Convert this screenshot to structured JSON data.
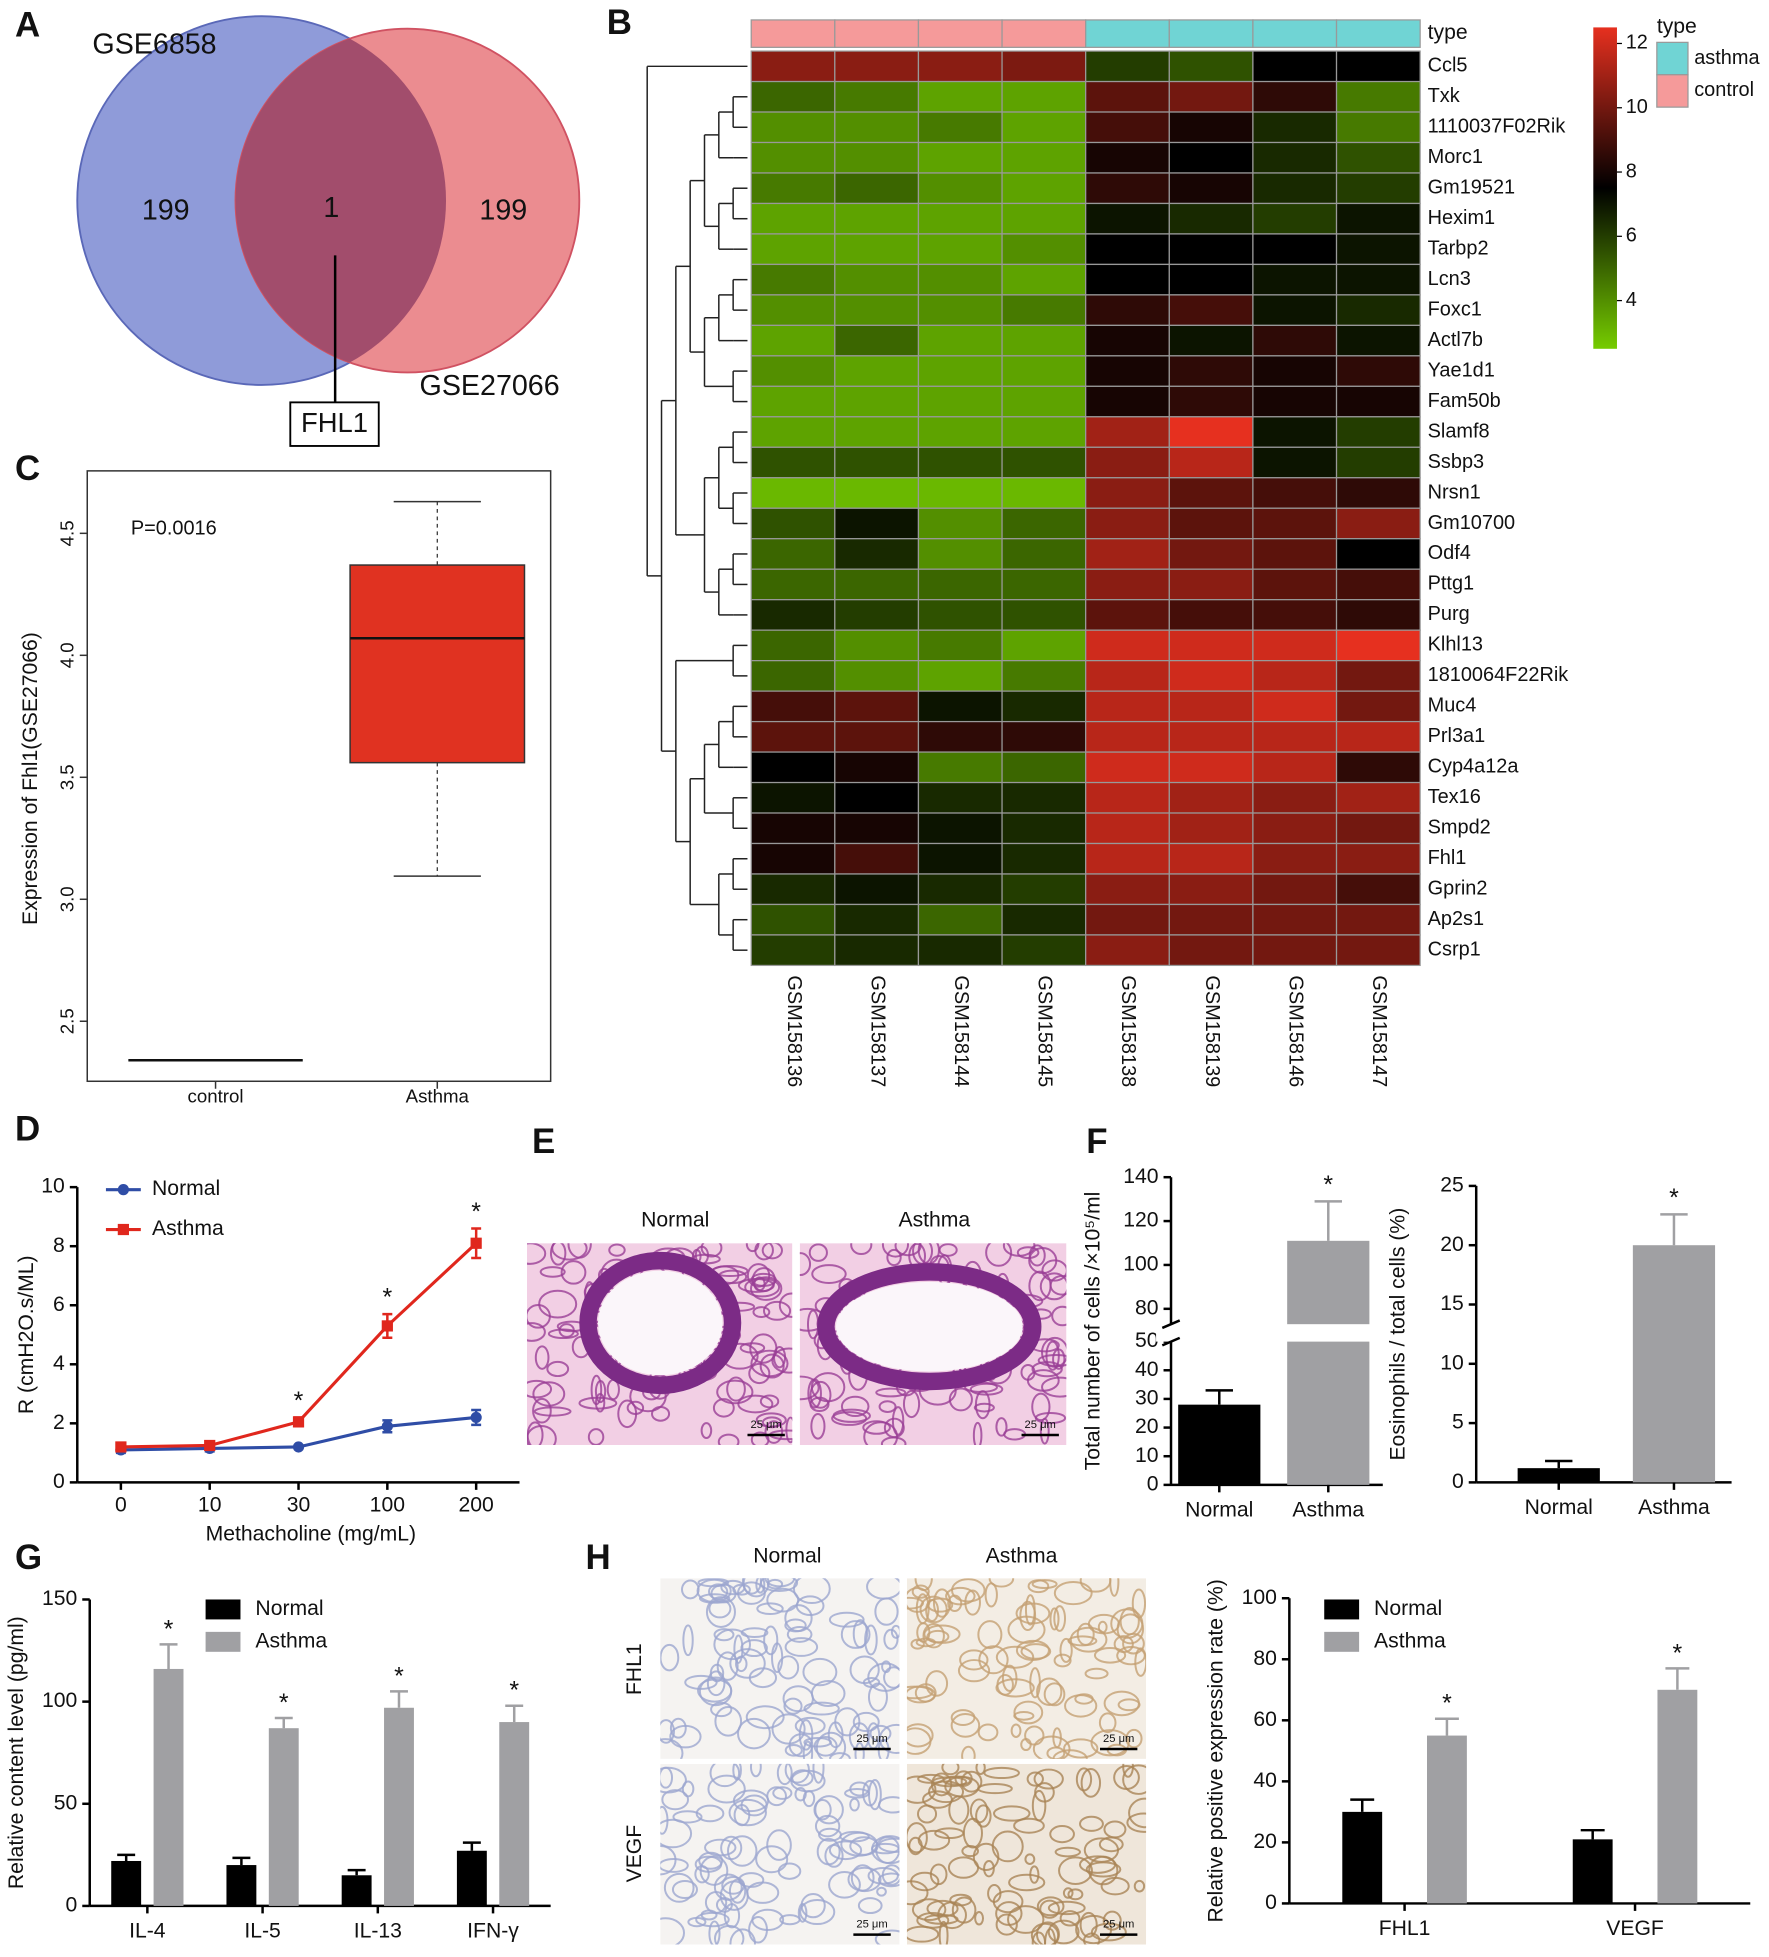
{
  "chart_data": [
    {
      "panel": "A",
      "type": "venn",
      "sets": [
        {
          "name": "GSE6858",
          "count": 199,
          "color": "#8f9bd9"
        },
        {
          "name": "GSE27066",
          "count": 199,
          "color": "#eb8c90"
        }
      ],
      "intersection": {
        "count": 1,
        "label": "FHL1",
        "color": "#a24d6c"
      }
    },
    {
      "panel": "B",
      "type": "heatmap",
      "rows": [
        "Ccl5",
        "Txk",
        "1110037F02Rik",
        "Morc1",
        "Gm19521",
        "Hexim1",
        "Tarbp2",
        "Lcn3",
        "Foxc1",
        "Actl7b",
        "Yae1d1",
        "Fam50b",
        "Slamf8",
        "Ssbp3",
        "Nrsn1",
        "Gm10700",
        "Odf4",
        "Pttg1",
        "Purg",
        "Klhl13",
        "1810064F22Rik",
        "Muc4",
        "Prl3a1",
        "Cyp4a12a",
        "Tex16",
        "Smpd2",
        "Fhl1",
        "Gprin2",
        "Ap2s1",
        "Csrp1"
      ],
      "columns": [
        "GSM158136",
        "GSM158137",
        "GSM158144",
        "GSM158145",
        "GSM158138",
        "GSM158139",
        "GSM158146",
        "GSM158147"
      ],
      "column_groups": [
        "control",
        "control",
        "control",
        "control",
        "asthma",
        "asthma",
        "asthma",
        "asthma"
      ],
      "group_title": "type",
      "groups": [
        {
          "name": "asthma",
          "color": "#70d4d4"
        },
        {
          "name": "control",
          "color": "#f59a9a"
        }
      ],
      "values": [
        [
          10.5,
          10.5,
          10.5,
          10.2,
          6,
          5.5,
          7.5,
          7.5
        ],
        [
          5,
          4.5,
          3.5,
          3.5,
          9.5,
          10,
          8.5,
          4.5
        ],
        [
          4,
          4,
          4.5,
          3.5,
          9,
          8,
          6.5,
          4.5
        ],
        [
          4,
          4,
          3.5,
          3.5,
          8,
          7.5,
          6.5,
          5.5
        ],
        [
          4.5,
          5,
          4,
          3.5,
          8.5,
          8,
          6.5,
          6
        ],
        [
          3.5,
          3.5,
          3.5,
          3.5,
          7,
          6.5,
          6,
          7
        ],
        [
          3.5,
          3.5,
          3.5,
          4,
          7.5,
          7.5,
          7.5,
          7
        ],
        [
          4.5,
          4,
          4,
          3.5,
          7.5,
          7.5,
          7,
          7
        ],
        [
          4,
          4,
          4,
          4.5,
          8.5,
          9,
          7,
          6.5
        ],
        [
          3.5,
          5,
          3.5,
          3.5,
          8,
          7,
          8.5,
          7
        ],
        [
          4,
          3.5,
          3.5,
          3.5,
          8,
          8.5,
          8,
          8.5
        ],
        [
          3.5,
          3.5,
          3.5,
          3.5,
          8,
          8.5,
          8,
          8
        ],
        [
          3.5,
          3.5,
          3.5,
          3.5,
          11,
          12.5,
          7,
          6
        ],
        [
          5.5,
          5.5,
          5.5,
          5.5,
          10.5,
          11.5,
          7,
          6
        ],
        [
          3,
          3,
          3,
          3,
          10.5,
          9.5,
          9,
          8.5
        ],
        [
          5.5,
          7,
          4,
          5,
          10.5,
          9.5,
          9.5,
          10.5
        ],
        [
          5,
          6.5,
          4,
          5,
          11,
          10,
          9.5,
          7.5
        ],
        [
          5,
          5,
          5,
          5,
          10.5,
          10.5,
          9.5,
          9
        ],
        [
          6.5,
          6,
          5.5,
          5.5,
          9.5,
          9,
          9,
          8.5
        ],
        [
          5,
          4,
          4.5,
          3.5,
          12,
          12,
          12,
          12.5
        ],
        [
          5,
          4,
          3.5,
          4.5,
          11.5,
          12,
          11.5,
          10
        ],
        [
          9,
          9.5,
          7,
          6.5,
          11.5,
          11.5,
          12,
          10
        ],
        [
          9.5,
          9.5,
          8.5,
          8.5,
          11.5,
          11.5,
          11.5,
          11.5
        ],
        [
          7.5,
          8,
          4.5,
          5,
          12,
          12,
          11.5,
          8.5
        ],
        [
          7,
          7.5,
          6.5,
          6.5,
          11.5,
          11,
          10.5,
          11
        ],
        [
          8,
          8,
          7,
          6.5,
          11.5,
          11,
          10.5,
          10
        ],
        [
          8,
          9,
          7,
          6.5,
          11.5,
          11.5,
          10.5,
          10.5
        ],
        [
          6.5,
          7,
          6.5,
          6,
          10.5,
          10.5,
          10,
          9
        ],
        [
          5.5,
          6.5,
          5,
          6.5,
          10,
          10,
          10,
          10
        ],
        [
          6,
          6.5,
          6.5,
          6,
          10.5,
          10,
          10,
          10
        ]
      ],
      "clim": [
        2.5,
        12.5
      ],
      "colorbar_ticks": [
        4,
        6,
        8,
        10,
        12
      ],
      "colors": [
        "#76cc00",
        "#000000",
        "#e6301f"
      ]
    },
    {
      "panel": "C",
      "type": "box",
      "ylabel": "Expression of Fhl1(GSE27066)",
      "annotation": "P=0.0016",
      "categories": [
        "control",
        "Asthma"
      ],
      "boxes": [
        {
          "min": 2.34,
          "q1": 2.34,
          "median": 2.34,
          "q3": 2.34,
          "max": 2.34
        },
        {
          "min": 3.095,
          "q1": 3.56,
          "median": 4.07,
          "q3": 4.37,
          "max": 4.63
        }
      ],
      "color": "#e03221",
      "ylim": [
        2.254,
        4.756
      ],
      "yticks": [
        2.5,
        {
          "value": 3,
          "label": "3.0"
        },
        3.5,
        {
          "value": 4,
          "label": "4.0"
        },
        4.5
      ]
    },
    {
      "panel": "D",
      "type": "line",
      "xlabel": "Methacholine (mg/mL)",
      "ylabel": "R (cmH2O.s/ML)",
      "categories": [
        "0",
        "10",
        "30",
        "100",
        "200"
      ],
      "series": [
        {
          "name": "Normal",
          "color": "#2f4da6",
          "marker": "circle",
          "values": [
            1.1,
            1.15,
            1.2,
            1.9,
            2.2
          ],
          "errors": [
            0.1,
            0.1,
            0.05,
            0.2,
            0.25
          ]
        },
        {
          "name": "Asthma",
          "color": "#e0271d",
          "marker": "square",
          "values": [
            1.2,
            1.25,
            2.05,
            5.3,
            8.1
          ],
          "errors": [
            0.1,
            0.1,
            0.15,
            0.4,
            0.5
          ],
          "significant": [
            false,
            false,
            true,
            true,
            true
          ]
        }
      ],
      "significance_mark": "*",
      "ylim": [
        0,
        10
      ],
      "yticks": [
        0,
        2,
        4,
        6,
        8,
        10
      ],
      "legend": "upper left"
    },
    {
      "panel": "E",
      "type": "image",
      "titles": [
        "Normal",
        "Asthma"
      ],
      "scale_bar": "25 μm"
    },
    {
      "panel": "F",
      "type": "bar",
      "ylabel": "Total number of cells /×10⁵/ml",
      "categories": [
        "Normal",
        "Asthma"
      ],
      "values": [
        28,
        111
      ],
      "errors": [
        5,
        18
      ],
      "colors": [
        "#000000",
        "#a0a0a3"
      ],
      "significant": [
        false,
        true
      ],
      "significance_mark": "*",
      "ylim": [
        0,
        140
      ],
      "ybreak": [
        50,
        73
      ],
      "yticks": [
        0,
        10,
        20,
        30,
        40,
        50,
        80,
        100,
        120,
        140
      ]
    },
    {
      "type": "bar",
      "ylabel": "Eosinophils / total cells (%)",
      "categories": [
        "Normal",
        "Asthma"
      ],
      "values": [
        1.2,
        20
      ],
      "errors": [
        0.6,
        2.6
      ],
      "colors": [
        "#000000",
        "#a0a0a3"
      ],
      "significant": [
        false,
        true
      ],
      "significance_mark": "*",
      "ylim": [
        0,
        25
      ],
      "yticks": [
        0,
        5,
        10,
        15,
        20,
        25
      ]
    },
    {
      "panel": "G",
      "type": "grouped_bar",
      "ylabel": "Relative content level (pg/ml)",
      "categories": [
        "IL-4",
        "IL-5",
        "IL-13",
        "IFN-γ"
      ],
      "series": [
        {
          "name": "Normal",
          "color": "#000000",
          "values": [
            22,
            20,
            15,
            27
          ],
          "errors": [
            3,
            3.5,
            2.5,
            4
          ]
        },
        {
          "name": "Asthma",
          "color": "#a0a0a3",
          "values": [
            116,
            87,
            97,
            90
          ],
          "errors": [
            12,
            5,
            8,
            8
          ],
          "significant": [
            true,
            true,
            true,
            true
          ]
        }
      ],
      "significance_mark": "*",
      "ylim": [
        0,
        150
      ],
      "yticks": [
        0,
        50,
        100,
        150
      ],
      "legend": "upper left"
    },
    {
      "panel": "H",
      "type": "image",
      "titles": [
        "Normal",
        "Asthma"
      ],
      "row_labels": [
        "FHL1",
        "VEGF"
      ],
      "scale_bar": "25 μm"
    },
    {
      "type": "grouped_bar",
      "ylabel": "Relative positive expression rate (%)",
      "categories": [
        "FHL1",
        "VEGF"
      ],
      "series": [
        {
          "name": "Normal",
          "color": "#000000",
          "values": [
            30,
            21
          ],
          "errors": [
            4,
            3
          ]
        },
        {
          "name": "Asthma",
          "color": "#a0a0a3",
          "values": [
            55,
            70
          ],
          "errors": [
            5.5,
            7
          ],
          "significant": [
            true,
            true
          ]
        }
      ],
      "significance_mark": "*",
      "ylim": [
        0,
        100
      ],
      "yticks": [
        0,
        20,
        40,
        60,
        80,
        100
      ],
      "legend": "upper left"
    }
  ]
}
